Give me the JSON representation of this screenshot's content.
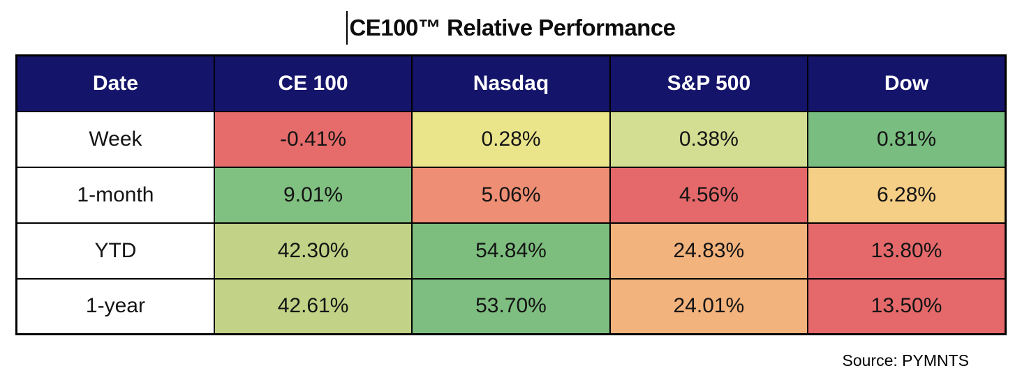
{
  "title": "CE100™ Relative Performance",
  "source_label": "Source: PYMNTS",
  "colors": {
    "header_bg": "#14146a",
    "header_text": "#ffffff",
    "border": "#000000",
    "row_label_bg": "#ffffff",
    "cell_text": "#141414"
  },
  "table": {
    "columns": [
      "Date",
      "CE 100",
      "Nasdaq",
      "S&P 500",
      "Dow"
    ],
    "rows": [
      {
        "label": "Week",
        "cells": [
          {
            "value": "-0.41%",
            "bg": "#e66c6b"
          },
          {
            "value": "0.28%",
            "bg": "#eae48b"
          },
          {
            "value": "0.38%",
            "bg": "#d4de92"
          },
          {
            "value": "0.81%",
            "bg": "#79bd80"
          }
        ]
      },
      {
        "label": "1-month",
        "cells": [
          {
            "value": "9.01%",
            "bg": "#80c081"
          },
          {
            "value": "5.06%",
            "bg": "#ee8e74"
          },
          {
            "value": "4.56%",
            "bg": "#e5696a"
          },
          {
            "value": "6.28%",
            "bg": "#f6cf87"
          }
        ]
      },
      {
        "label": "YTD",
        "cells": [
          {
            "value": "42.30%",
            "bg": "#c2d287"
          },
          {
            "value": "54.84%",
            "bg": "#7dbe7e"
          },
          {
            "value": "24.83%",
            "bg": "#f3b37d"
          },
          {
            "value": "13.80%",
            "bg": "#e5696a"
          }
        ]
      },
      {
        "label": "1-year",
        "cells": [
          {
            "value": "42.61%",
            "bg": "#c2d287"
          },
          {
            "value": "53.70%",
            "bg": "#7fbe81"
          },
          {
            "value": "24.01%",
            "bg": "#f3b37d"
          },
          {
            "value": "13.50%",
            "bg": "#e5696a"
          }
        ]
      }
    ]
  },
  "chart_data": {
    "type": "heatmap",
    "title": "CE100™ Relative Performance",
    "columns": [
      "CE 100",
      "Nasdaq",
      "S&P 500",
      "Dow"
    ],
    "rows": [
      "Week",
      "1-month",
      "YTD",
      "1-year"
    ],
    "values_pct": [
      [
        -0.41,
        0.28,
        0.38,
        0.81
      ],
      [
        9.01,
        5.06,
        4.56,
        6.28
      ],
      [
        42.3,
        54.84,
        24.83,
        13.8
      ],
      [
        42.61,
        53.7,
        24.01,
        13.5
      ]
    ],
    "color_scale": "red-yellow-green (red = worst, green = best, ranked within each row)",
    "annotations": [
      "Source: PYMNTS"
    ]
  }
}
